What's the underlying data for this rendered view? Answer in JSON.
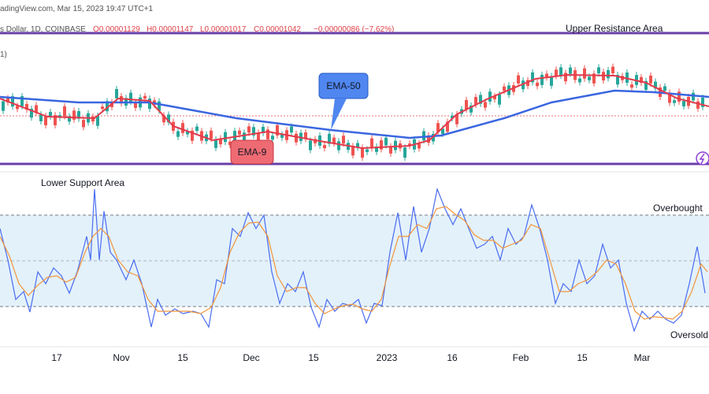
{
  "header": {
    "source": "adingView.com, Mar 15, 2023 19:47 UTC+1",
    "symbol": "s Dollar, 1D, COINBASE",
    "open": "O0.00001129",
    "high": "H0.00001147",
    "low": "L0.00001017",
    "close": "C0.00001042",
    "change": "−0.00000086 (−7.62%)",
    "indicator": "1)"
  },
  "annotations": {
    "upper": "Upper Resistance Area",
    "ema50": "EMA-50",
    "ema9": "EMA-9",
    "lower": "Lower Support Area",
    "overbought": "Overbought",
    "oversold": "Oversold"
  },
  "x_axis": [
    "17",
    "Nov",
    "15",
    "Dec",
    "15",
    "2023",
    "16",
    "Feb",
    "15",
    "Mar"
  ]
}
